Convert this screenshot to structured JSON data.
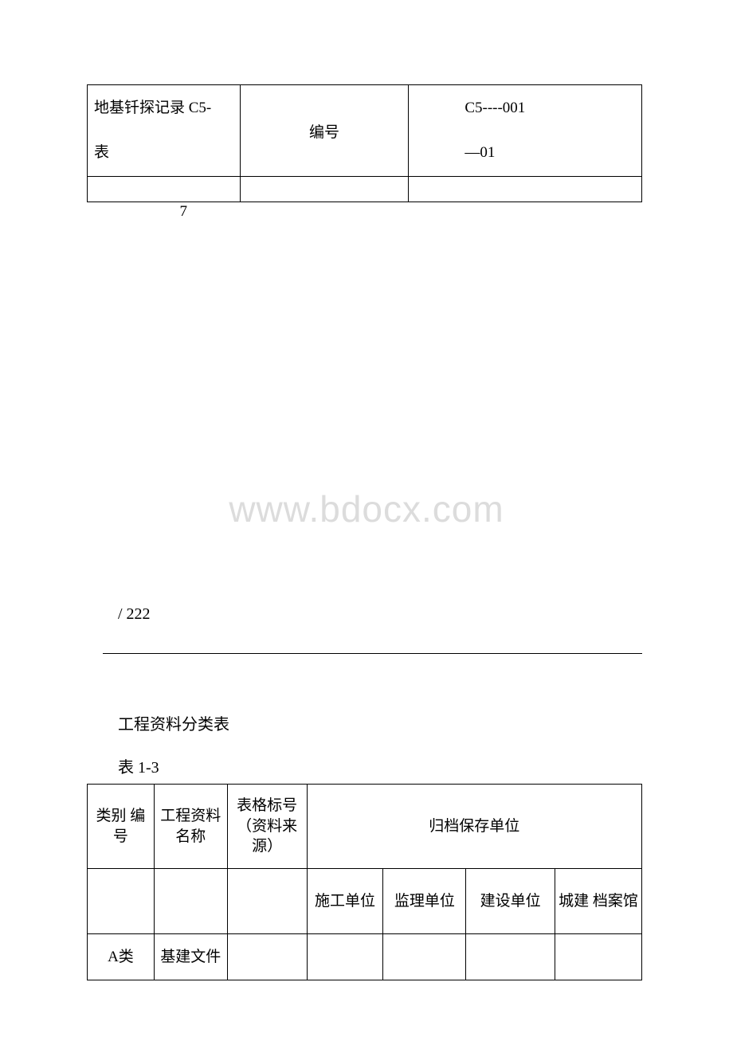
{
  "watermark": "www.bdocx.com",
  "table1": {
    "row1": {
      "prefix": "7",
      "col1_line1": "地基钎探记录 C5-",
      "col1_line2": "表",
      "col2": "编号",
      "col3_line1": "C5----001",
      "col3_line2": "—01"
    }
  },
  "page_number": "/ 222",
  "section_title": "工程资料分类表",
  "table_label": "表 1-3",
  "table2": {
    "headers": {
      "col1": "类别 编号",
      "col2": "工程资料名称",
      "col3": "表格标号（资料来源）",
      "col_merged": "归档保存单位",
      "sub1": "施工单位",
      "sub2": "监理单位",
      "sub3": "建设单位",
      "sub4": "城建 档案馆"
    },
    "row1": {
      "col1": "A类",
      "col2": "基建文件"
    }
  },
  "colors": {
    "text": "#000000",
    "watermark": "#dcdcdc",
    "border": "#000000",
    "background": "#ffffff"
  }
}
